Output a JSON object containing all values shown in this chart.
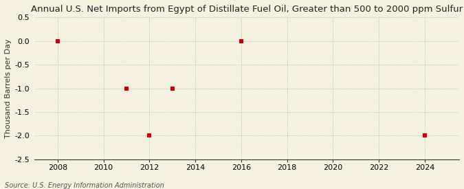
{
  "title": "Annual U.S. Net Imports from Egypt of Distillate Fuel Oil, Greater than 500 to 2000 ppm Sulfur",
  "ylabel": "Thousand Barrels per Day",
  "source": "Source: U.S. Energy Information Administration",
  "background_color": "#f5f0df",
  "data_x": [
    2008,
    2011,
    2012,
    2013,
    2016,
    2024
  ],
  "data_y": [
    0.0,
    -1.0,
    -2.0,
    -1.0,
    0.0,
    -2.0
  ],
  "marker_color": "#cc0000",
  "marker_style": "s",
  "marker_size": 4,
  "xlim": [
    2007.0,
    2025.5
  ],
  "ylim": [
    -2.5,
    0.5
  ],
  "xticks": [
    2008,
    2010,
    2012,
    2014,
    2016,
    2018,
    2020,
    2022,
    2024
  ],
  "yticks": [
    0.5,
    0.0,
    -0.5,
    -1.0,
    -1.5,
    -2.0,
    -2.5
  ],
  "grid_color": "#aaaaaa",
  "grid_style": ":",
  "title_fontsize": 9.5,
  "label_fontsize": 8,
  "tick_fontsize": 8,
  "source_fontsize": 7
}
